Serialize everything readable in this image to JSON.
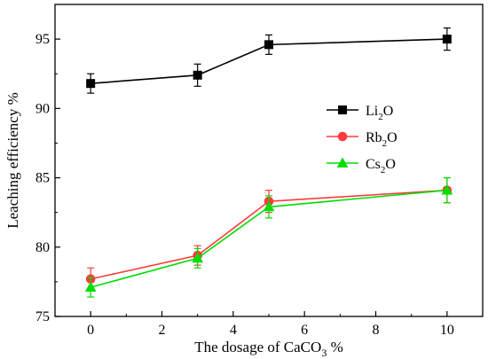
{
  "chart_data": {
    "type": "line",
    "xlabel": "The dosage of CaCO",
    "xlabel_sub": "3",
    "xlabel_unit": " %",
    "ylabel": "Leaching efficiency %",
    "xlim": [
      -1,
      11
    ],
    "ylim": [
      75,
      97.5
    ],
    "x_ticks": [
      0,
      2,
      4,
      6,
      8,
      10
    ],
    "y_ticks": [
      75,
      80,
      85,
      90,
      95
    ],
    "legend_position": "right-middle",
    "series": [
      {
        "name": "Li2O",
        "label_main": "Li",
        "label_sub": "2",
        "label_tail": "O",
        "color": "#000000",
        "marker": "square",
        "x": [
          0,
          3,
          5,
          10
        ],
        "y": [
          91.8,
          92.4,
          94.6,
          95.0
        ],
        "err": [
          0.7,
          0.8,
          0.7,
          0.8
        ]
      },
      {
        "name": "Rb2O",
        "label_main": "Rb",
        "label_sub": "2",
        "label_tail": "O",
        "color": "#ff3b3b",
        "marker": "circle",
        "x": [
          0,
          3,
          5,
          10
        ],
        "y": [
          77.7,
          79.4,
          83.3,
          84.1
        ],
        "err": [
          0.8,
          0.7,
          0.8,
          0.9
        ]
      },
      {
        "name": "Cs2O",
        "label_main": "Cs",
        "label_sub": "2",
        "label_tail": "O",
        "color": "#00dd00",
        "marker": "triangle",
        "x": [
          0,
          3,
          5,
          10
        ],
        "y": [
          77.1,
          79.2,
          82.9,
          84.1
        ],
        "err": [
          0.7,
          0.7,
          0.8,
          0.9
        ]
      }
    ]
  }
}
